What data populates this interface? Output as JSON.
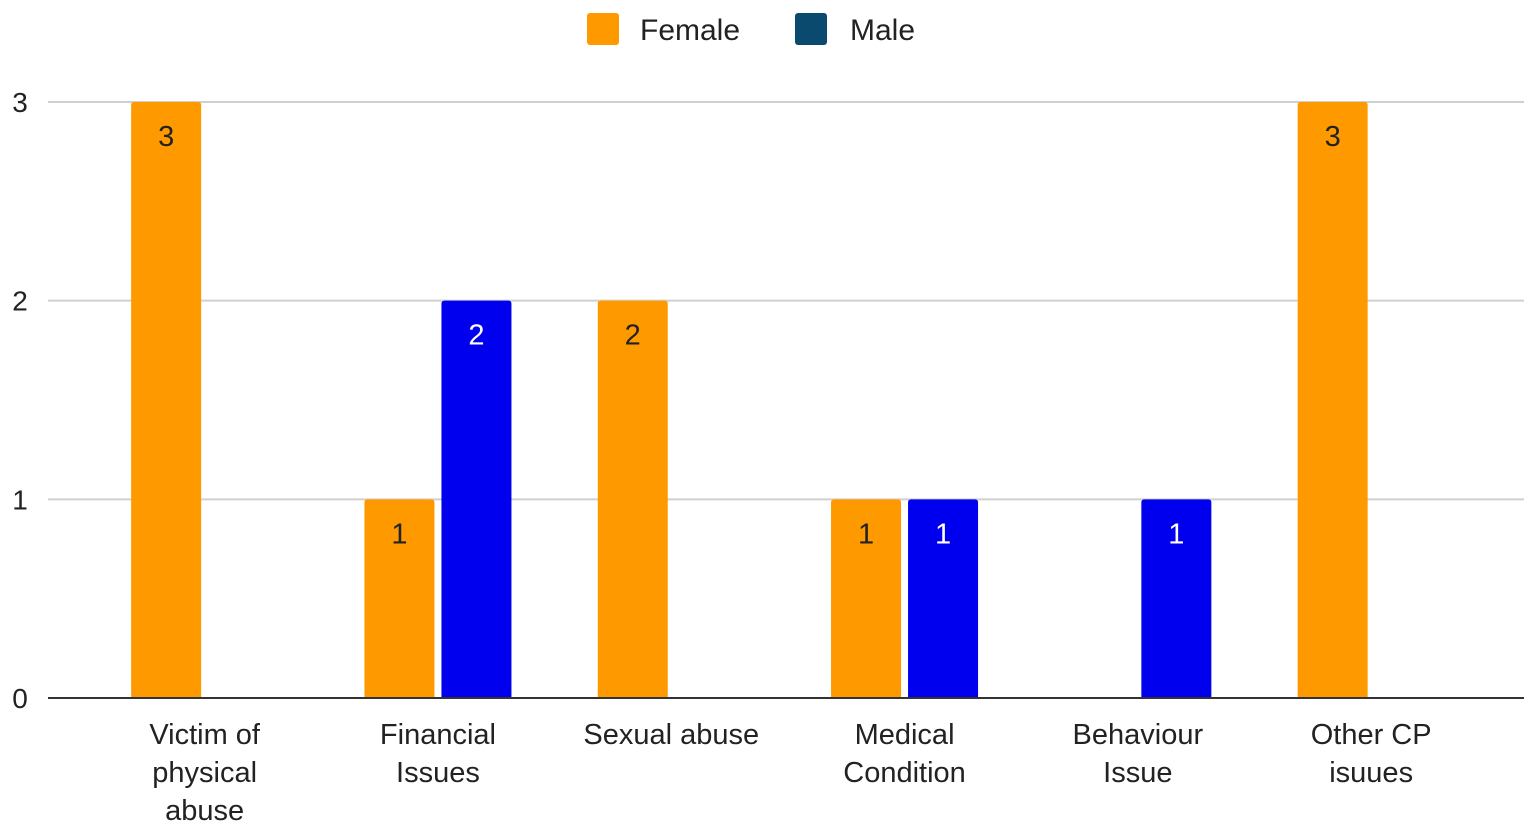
{
  "chart_data": {
    "type": "bar",
    "title": "",
    "xlabel": "",
    "ylabel": "",
    "categories": [
      [
        "Victim of",
        "physical",
        "abuse"
      ],
      [
        "Financial",
        "Issues"
      ],
      [
        "Sexual abuse"
      ],
      [
        "Medical",
        "Condition"
      ],
      [
        "Behaviour",
        "Issue"
      ],
      [
        "Other CP",
        "isuues"
      ]
    ],
    "series": [
      {
        "name": "Female",
        "legend_color": "#ff9900",
        "color": "#ff9900",
        "label_color": "#222222",
        "values": [
          3,
          1,
          2,
          1,
          null,
          3
        ]
      },
      {
        "name": "Male",
        "legend_color": "#0b4a6f",
        "color": "#0000ee",
        "label_color": "#ffffff",
        "values": [
          null,
          2,
          null,
          1,
          1,
          null
        ]
      }
    ],
    "ylim": [
      0,
      3
    ],
    "yticks": [
      "0",
      "1",
      "2",
      "3"
    ],
    "grid": true,
    "legend_position": "top-center",
    "data_labels": true
  }
}
